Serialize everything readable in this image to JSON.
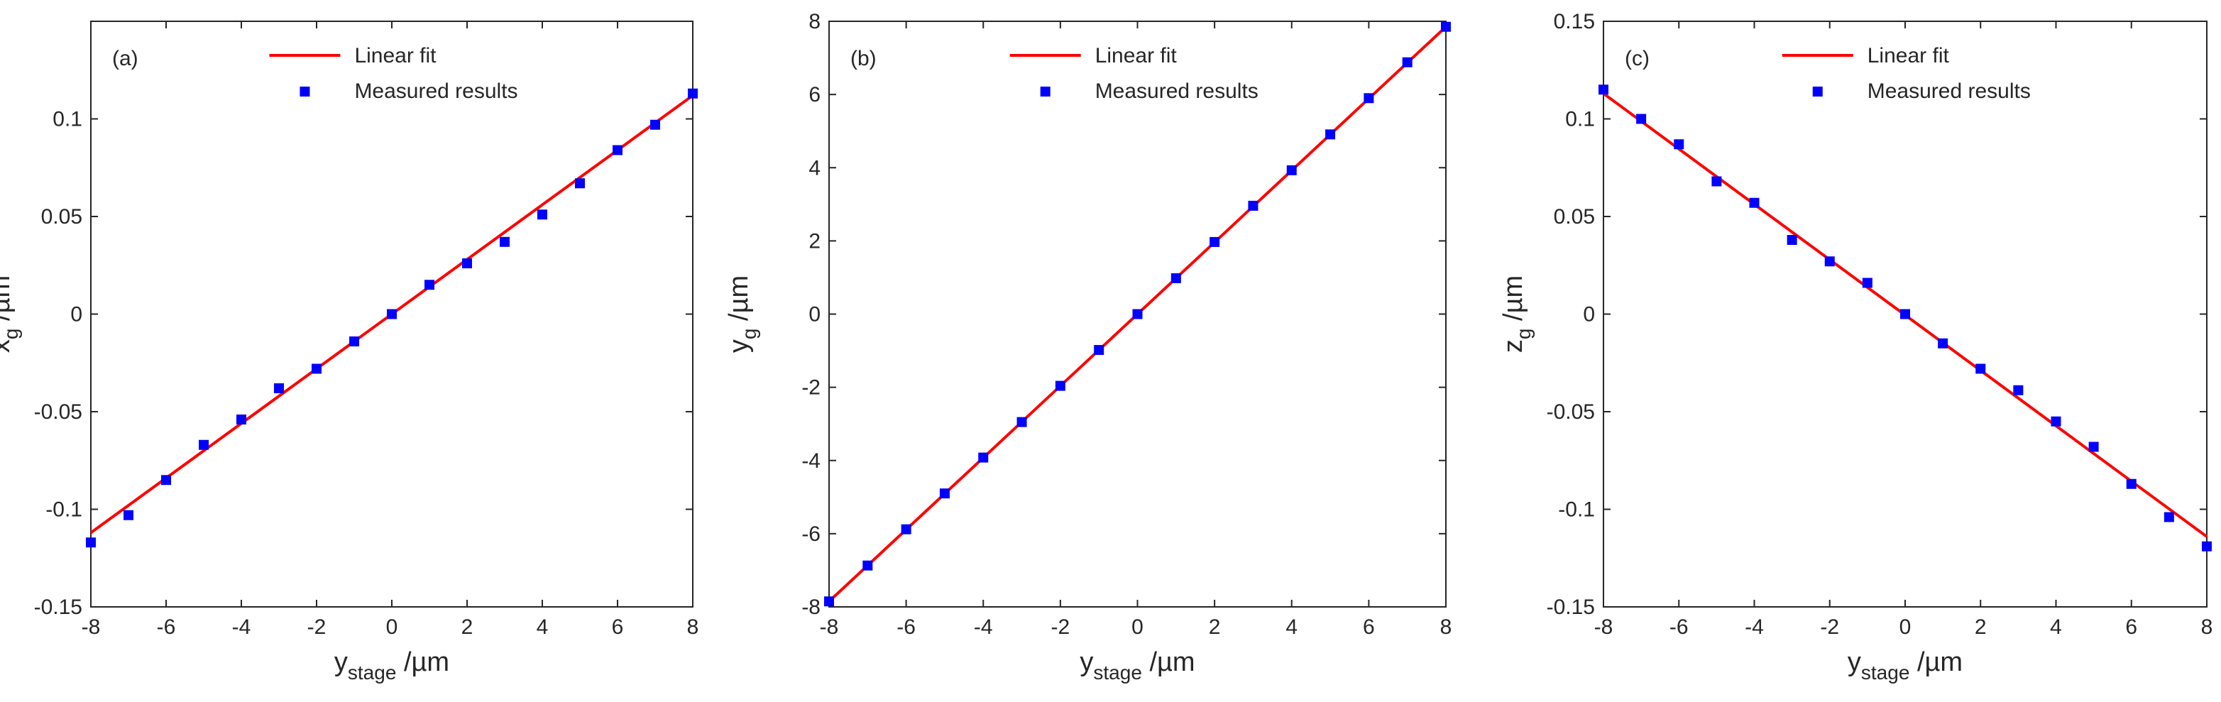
{
  "chart_data": [
    {
      "type": "scatter",
      "panel_label": "(a)",
      "ylabel_main": "x",
      "ylabel_sub": "g",
      "ylabel_unit": " /µm",
      "xlabel_main": "y",
      "xlabel_sub": "stage",
      "xlabel_unit": " /µm",
      "xlim": [
        -8,
        8
      ],
      "ylim": [
        -0.15,
        0.15
      ],
      "xticks": [
        -8,
        -6,
        -4,
        -2,
        0,
        2,
        4,
        6,
        8
      ],
      "yticks": [
        -0.15,
        -0.1,
        -0.05,
        0,
        0.05,
        0.1
      ],
      "xtick_labels": [
        "-8",
        "-6",
        "-4",
        "-2",
        "0",
        "2",
        "4",
        "6",
        "8"
      ],
      "ytick_labels": [
        "-0.15",
        "-0.1",
        "-0.05",
        "0",
        "0.05",
        "0.1"
      ],
      "legend": {
        "placement": "top-center",
        "fit_label": "Linear fit",
        "measured_label": "Measured results"
      },
      "series": [
        {
          "name": "Linear fit",
          "kind": "line",
          "x": [
            -8,
            8
          ],
          "y": [
            -0.112,
            0.112
          ]
        },
        {
          "name": "Measured results",
          "kind": "markers",
          "x": [
            -8,
            -7,
            -6,
            -5,
            -4,
            -3,
            -2,
            -1,
            0,
            1,
            2,
            3,
            4,
            5,
            6,
            7,
            8
          ],
          "y": [
            -0.117,
            -0.103,
            -0.085,
            -0.067,
            -0.054,
            -0.038,
            -0.028,
            -0.014,
            0.0,
            0.015,
            0.026,
            0.037,
            0.051,
            0.067,
            0.084,
            0.097,
            0.113
          ]
        }
      ]
    },
    {
      "type": "scatter",
      "panel_label": "(b)",
      "ylabel_main": "y",
      "ylabel_sub": "g",
      "ylabel_unit": " /µm",
      "xlabel_main": "y",
      "xlabel_sub": "stage",
      "xlabel_unit": " /µm",
      "xlim": [
        -8,
        8
      ],
      "ylim": [
        -8,
        8
      ],
      "xticks": [
        -8,
        -6,
        -4,
        -2,
        0,
        2,
        4,
        6,
        8
      ],
      "yticks": [
        -8,
        -6,
        -4,
        -2,
        0,
        2,
        4,
        6,
        8
      ],
      "xtick_labels": [
        "-8",
        "-6",
        "-4",
        "-2",
        "0",
        "2",
        "4",
        "6",
        "8"
      ],
      "ytick_labels": [
        "-8",
        "-6",
        "-4",
        "-2",
        "0",
        "2",
        "4",
        "6",
        "8"
      ],
      "legend": {
        "placement": "top-center",
        "fit_label": "Linear fit",
        "measured_label": "Measured results"
      },
      "series": [
        {
          "name": "Linear fit",
          "kind": "line",
          "x": [
            -8,
            8
          ],
          "y": [
            -7.85,
            7.85
          ]
        },
        {
          "name": "Measured results",
          "kind": "markers",
          "x": [
            -8,
            -7,
            -6,
            -5,
            -4,
            -3,
            -2,
            -1,
            0,
            1,
            2,
            3,
            4,
            5,
            6,
            7,
            8
          ],
          "y": [
            -7.85,
            -6.87,
            -5.88,
            -4.9,
            -3.92,
            -2.95,
            -1.96,
            -0.98,
            0.0,
            0.98,
            1.97,
            2.96,
            3.93,
            4.91,
            5.9,
            6.88,
            7.85
          ]
        }
      ]
    },
    {
      "type": "scatter",
      "panel_label": "(c)",
      "ylabel_main": "z",
      "ylabel_sub": "g",
      "ylabel_unit": " /µm",
      "xlabel_main": "y",
      "xlabel_sub": "stage",
      "xlabel_unit": " /µm",
      "xlim": [
        -8,
        8
      ],
      "ylim": [
        -0.15,
        0.15
      ],
      "xticks": [
        -8,
        -6,
        -4,
        -2,
        0,
        2,
        4,
        6,
        8
      ],
      "yticks": [
        -0.15,
        -0.1,
        -0.05,
        0,
        0.05,
        0.1,
        0.15
      ],
      "xtick_labels": [
        "-8",
        "-6",
        "-4",
        "-2",
        "0",
        "2",
        "4",
        "6",
        "8"
      ],
      "ytick_labels": [
        "-0.15",
        "-0.1",
        "-0.05",
        "0",
        "0.05",
        "0.1",
        "0.15"
      ],
      "legend": {
        "placement": "top-center",
        "fit_label": "Linear fit",
        "measured_label": "Measured results"
      },
      "series": [
        {
          "name": "Linear fit",
          "kind": "line",
          "x": [
            -8,
            8
          ],
          "y": [
            0.113,
            -0.114
          ]
        },
        {
          "name": "Measured results",
          "kind": "markers",
          "x": [
            -8,
            -7,
            -6,
            -5,
            -4,
            -3,
            -2,
            -1,
            0,
            1,
            2,
            3,
            4,
            5,
            6,
            7,
            8
          ],
          "y": [
            0.115,
            0.1,
            0.087,
            0.068,
            0.057,
            0.038,
            0.027,
            0.016,
            0.0,
            -0.015,
            -0.028,
            -0.039,
            -0.055,
            -0.068,
            -0.087,
            -0.104,
            -0.119
          ]
        }
      ]
    }
  ]
}
